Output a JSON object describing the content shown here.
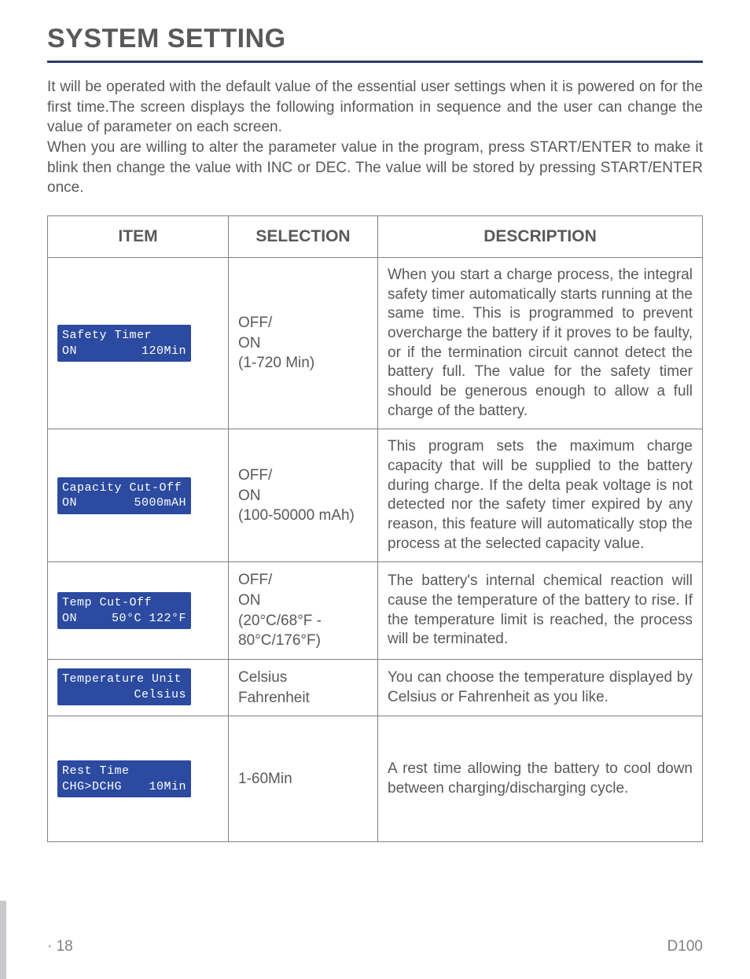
{
  "title": "SYSTEM SETTING",
  "intro_p1": "It will be operated with the default value of the essential user settings when it is powered on for the first time.The screen displays the following information in sequence and the user can change the value of parameter on each screen.",
  "intro_p2": "When you are willing to alter the parameter value in the program, press START/ENTER to make it blink then change the value with INC or DEC. The value will be stored by pressing START/ENTER once.",
  "headers": {
    "item": "ITEM",
    "selection": "SELECTION",
    "description": "DESCRIPTION"
  },
  "rows": [
    {
      "lcd_l1a": "Safety Timer",
      "lcd_l1b": "",
      "lcd_l2a": "ON",
      "lcd_l2b": "120Min",
      "selection": "OFF/\nON\n(1-720 Min)",
      "description": "When you start a charge process, the integral safety timer automatically starts running at the same time. This is programmed to prevent overcharge the battery if it proves to be faulty, or if the termination circuit cannot detect the battery full. The value for the safety timer should be generous enough to allow a full charge of the battery."
    },
    {
      "lcd_l1a": "Capacity Cut-Off",
      "lcd_l1b": "",
      "lcd_l2a": "ON",
      "lcd_l2b": "5000mAH",
      "selection": "OFF/\nON\n(100-50000 mAh)",
      "description": "This program sets the maximum charge capacity that will be supplied to the battery during charge. If the delta peak voltage is not detected nor the safety timer expired by any reason, this feature will automatically stop the process at the selected capacity value."
    },
    {
      "lcd_l1a": "Temp Cut-Off",
      "lcd_l1b": "",
      "lcd_l2a": "ON",
      "lcd_l2b": "50°C 122°F",
      "selection": "OFF/\nON\n(20°C/68°F -\n80°C/176°F)",
      "description": "The battery's internal chemical reaction will cause the temperature of the battery to rise. If the temperature limit is reached, the process will be terminated."
    },
    {
      "lcd_l1a": "Temperature Unit",
      "lcd_l1b": "",
      "lcd_l2a": "",
      "lcd_l2b": "Celsius",
      "selection": "Celsius\nFahrenheit",
      "description": "You can choose the temperature displayed by Celsius or Fahrenheit as you like."
    },
    {
      "lcd_l1a": "Rest Time",
      "lcd_l1b": "",
      "lcd_l2a": "CHG>DCHG",
      "lcd_l2b": "10Min",
      "selection": "1-60Min",
      "description": "A rest time allowing the battery to cool down between charging/discharging cycle."
    }
  ],
  "footer": {
    "page": "·  18",
    "model": "D100"
  }
}
